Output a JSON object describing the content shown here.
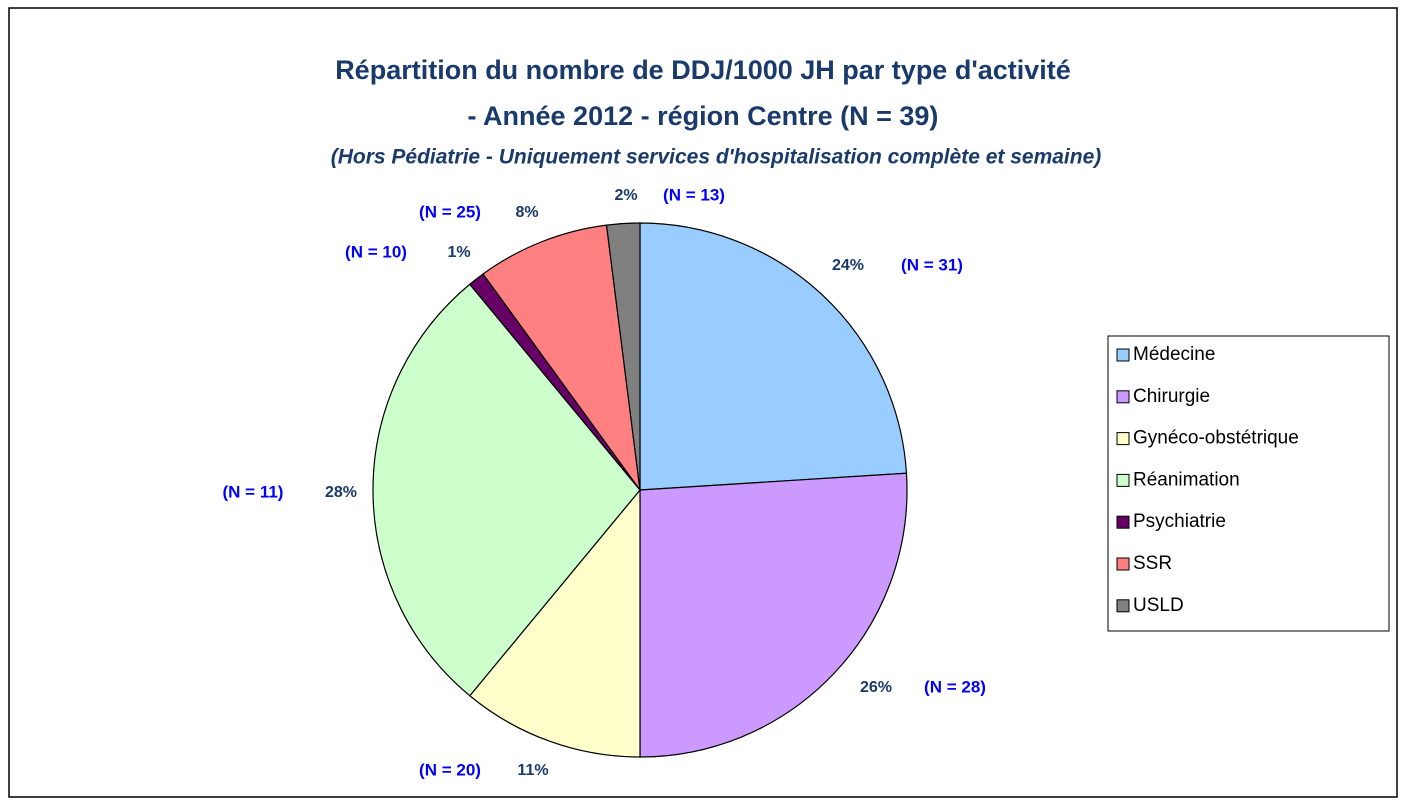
{
  "chart_data": {
    "type": "pie",
    "title": [
      "Répartition du nombre de DDJ/1000 JH par type d'activité",
      "- Année 2012 - région Centre (N = 39)"
    ],
    "subtitle": "(Hors Pédiatrie - Uniquement services d'hospitalisation complète et semaine)",
    "categories": [
      "Médecine",
      "Chirurgie",
      "Gynéco-obstétrique",
      "Réanimation",
      "Psychiatrie",
      "SSR",
      "USLD"
    ],
    "values": [
      24,
      26,
      11,
      28,
      1,
      8,
      2
    ],
    "value_labels": [
      "24%",
      "26%",
      "11%",
      "28%",
      "1%",
      "8%",
      "2%"
    ],
    "annotations": [
      "(N = 31)",
      "(N = 28)",
      "(N = 20)",
      "(N = 11)",
      "(N = 10)",
      "(N = 25)",
      "(N = 13)"
    ],
    "colors": [
      "#99ccff",
      "#cc99ff",
      "#ffffcc",
      "#ccffcc",
      "#660066",
      "#ff8080",
      "#808080"
    ],
    "legend": "right"
  }
}
